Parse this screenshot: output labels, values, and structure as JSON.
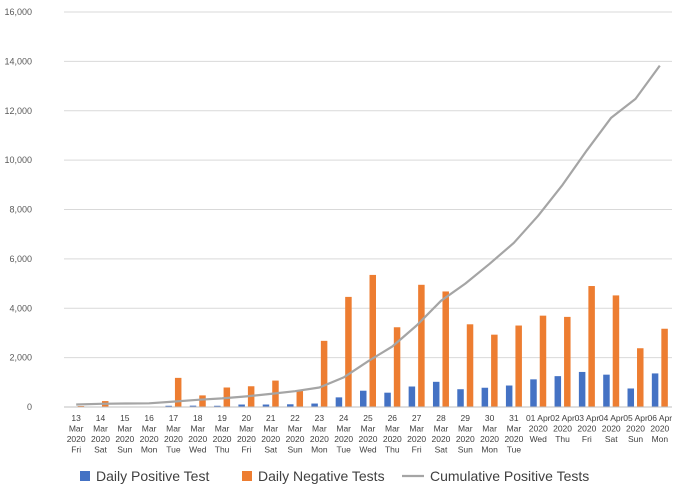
{
  "chart_data": {
    "type": "bar",
    "title": "",
    "xlabel": "",
    "ylabel": "",
    "ylim": [
      0,
      16000
    ],
    "yticks": [
      "0",
      "2,000",
      "4,000",
      "6,000",
      "8,000",
      "10,000",
      "12,000",
      "14,000",
      "16,000"
    ],
    "ytick_values": [
      0,
      2000,
      4000,
      6000,
      8000,
      10000,
      12000,
      14000,
      16000
    ],
    "grid": true,
    "legend_position": "bottom",
    "categories": [
      [
        "13",
        "Mar",
        "2020",
        "Fri"
      ],
      [
        "14",
        "Mar",
        "2020",
        "Sat"
      ],
      [
        "15",
        "Mar",
        "2020",
        "Sun"
      ],
      [
        "16",
        "Mar",
        "2020",
        "Mon"
      ],
      [
        "17",
        "Mar",
        "2020",
        "Tue"
      ],
      [
        "18",
        "Mar",
        "2020",
        "Wed"
      ],
      [
        "19",
        "Mar",
        "2020",
        "Thu"
      ],
      [
        "20",
        "Mar",
        "2020",
        "Fri"
      ],
      [
        "21",
        "Mar",
        "2020",
        "Sat"
      ],
      [
        "22",
        "Mar",
        "2020",
        "Sun"
      ],
      [
        "23",
        "Mar",
        "2020",
        "Mon"
      ],
      [
        "24",
        "Mar",
        "2020",
        "Tue"
      ],
      [
        "25",
        "Mar",
        "2020",
        "Wed"
      ],
      [
        "26",
        "Mar",
        "2020",
        "Thu"
      ],
      [
        "27",
        "Mar",
        "2020",
        "Fri"
      ],
      [
        "28",
        "Mar",
        "2020",
        "Sat"
      ],
      [
        "29",
        "Mar",
        "2020",
        "Sun"
      ],
      [
        "30",
        "Mar",
        "2020",
        "Mon"
      ],
      [
        "31",
        "Mar",
        "2020",
        "Tue"
      ],
      [
        "01 Apr",
        "2020",
        "Wed"
      ],
      [
        "02 Apr",
        "2020",
        "Thu"
      ],
      [
        "03 Apr",
        "2020",
        "Fri"
      ],
      [
        "04 Apr",
        "2020",
        "Sat"
      ],
      [
        "05 Apr",
        "2020",
        "Sun"
      ],
      [
        "06 Apr",
        "2020",
        "Mon"
      ]
    ],
    "series": [
      {
        "name": "Daily Positive Test",
        "type": "bar",
        "color": "#4472C4",
        "values": [
          5,
          20,
          15,
          20,
          50,
          55,
          50,
          100,
          100,
          110,
          140,
          390,
          660,
          580,
          830,
          1020,
          720,
          780,
          870,
          1120,
          1250,
          1420,
          1310,
          750,
          1360
        ]
      },
      {
        "name": "Daily Negative Tests",
        "type": "bar",
        "color": "#ED7D31",
        "values": [
          40,
          240,
          20,
          20,
          1180,
          470,
          790,
          840,
          1070,
          670,
          2680,
          4460,
          5350,
          3230,
          4950,
          4680,
          3350,
          2930,
          3300,
          3700,
          3650,
          4900,
          4520,
          2380,
          3170
        ]
      },
      {
        "name": "Cumulative Positive Tests",
        "type": "line",
        "color": "#A5A5A5",
        "values": [
          100,
          130,
          140,
          150,
          220,
          290,
          350,
          430,
          530,
          640,
          790,
          1200,
          1850,
          2450,
          3300,
          4300,
          5000,
          5800,
          6650,
          7750,
          9000,
          10400,
          11720,
          12480,
          13830
        ]
      }
    ]
  }
}
